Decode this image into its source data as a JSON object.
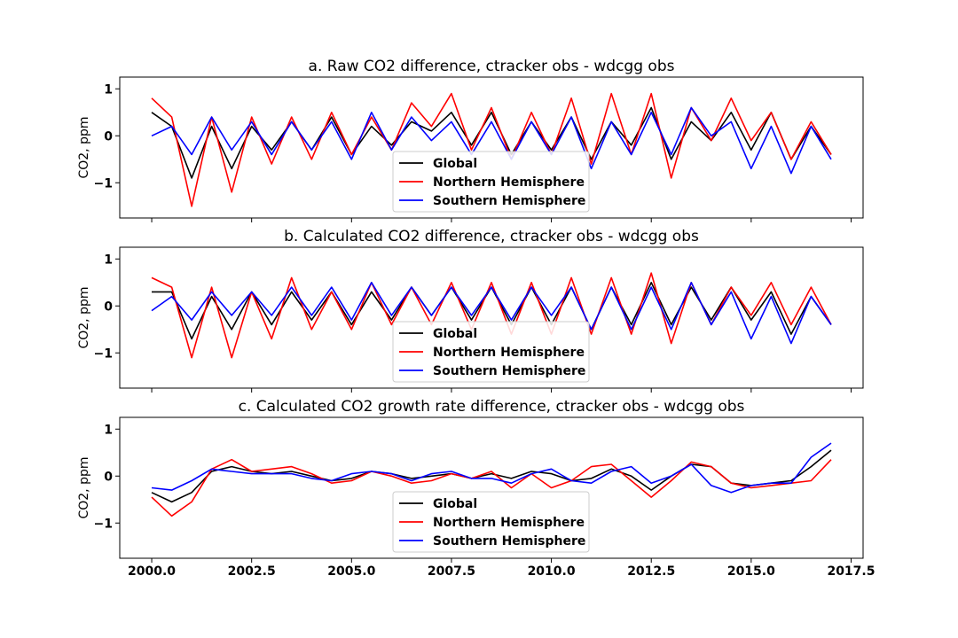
{
  "chart_data": [
    {
      "type": "line",
      "title": "a. Raw CO2 difference, ctracker obs - wdcgg obs",
      "ylabel": "CO2, ppm",
      "xlabel": "",
      "xlim": [
        1999.2,
        2017.8
      ],
      "ylim": [
        -1.75,
        1.25
      ],
      "yticks": [
        1,
        0,
        -1
      ],
      "ytick_labels": [
        "1",
        "0",
        "−1"
      ],
      "xticks": [
        2000.0,
        2002.5,
        2005.0,
        2007.5,
        2010.0,
        2012.5,
        2015.0,
        2017.5
      ],
      "xtick_labels": [],
      "grid": false,
      "legend_position": "lower-center",
      "series": [
        {
          "name": "Global",
          "color": "#000000",
          "x": [
            2000.0,
            2000.5,
            2001.0,
            2001.5,
            2002.0,
            2002.5,
            2003.0,
            2003.5,
            2004.0,
            2004.5,
            2005.0,
            2005.5,
            2006.0,
            2006.5,
            2007.0,
            2007.5,
            2008.0,
            2008.5,
            2009.0,
            2009.5,
            2010.0,
            2010.5,
            2011.0,
            2011.5,
            2012.0,
            2012.5,
            2013.0,
            2013.5,
            2014.0,
            2014.5,
            2015.0,
            2015.5,
            2016.0,
            2016.5,
            2017.0
          ],
          "y": [
            0.5,
            0.2,
            -0.9,
            0.2,
            -0.7,
            0.2,
            -0.3,
            0.3,
            -0.3,
            0.4,
            -0.4,
            0.2,
            -0.2,
            0.3,
            0.1,
            0.5,
            -0.2,
            0.5,
            -0.4,
            0.3,
            -0.3,
            0.4,
            -0.5,
            0.3,
            -0.2,
            0.6,
            -0.5,
            0.3,
            -0.1,
            0.5,
            -0.3,
            0.5,
            -0.5,
            0.2,
            -0.4
          ]
        },
        {
          "name": "Northern Hemisphere",
          "color": "#ff0000",
          "x": [
            2000.0,
            2000.5,
            2001.0,
            2001.5,
            2002.0,
            2002.5,
            2003.0,
            2003.5,
            2004.0,
            2004.5,
            2005.0,
            2005.5,
            2006.0,
            2006.5,
            2007.0,
            2007.5,
            2008.0,
            2008.5,
            2009.0,
            2009.5,
            2010.0,
            2010.5,
            2011.0,
            2011.5,
            2012.0,
            2012.5,
            2013.0,
            2013.5,
            2014.0,
            2014.5,
            2015.0,
            2015.5,
            2016.0,
            2016.5,
            2017.0
          ],
          "y": [
            0.8,
            0.4,
            -1.5,
            0.4,
            -1.2,
            0.4,
            -0.6,
            0.4,
            -0.5,
            0.5,
            -0.4,
            0.4,
            -0.3,
            0.7,
            0.2,
            0.9,
            -0.3,
            0.6,
            -0.5,
            0.5,
            -0.4,
            0.8,
            -0.6,
            0.9,
            -0.4,
            0.9,
            -0.9,
            0.6,
            -0.1,
            0.8,
            -0.1,
            0.5,
            -0.5,
            0.3,
            -0.4
          ]
        },
        {
          "name": "Southern Hemisphere",
          "color": "#0000ff",
          "x": [
            2000.0,
            2000.5,
            2001.0,
            2001.5,
            2002.0,
            2002.5,
            2003.0,
            2003.5,
            2004.0,
            2004.5,
            2005.0,
            2005.5,
            2006.0,
            2006.5,
            2007.0,
            2007.5,
            2008.0,
            2008.5,
            2009.0,
            2009.5,
            2010.0,
            2010.5,
            2011.0,
            2011.5,
            2012.0,
            2012.5,
            2013.0,
            2013.5,
            2014.0,
            2014.5,
            2015.0,
            2015.5,
            2016.0,
            2016.5,
            2017.0
          ],
          "y": [
            0.0,
            0.2,
            -0.4,
            0.4,
            -0.3,
            0.3,
            -0.4,
            0.3,
            -0.3,
            0.3,
            -0.5,
            0.5,
            -0.3,
            0.4,
            -0.1,
            0.3,
            -0.4,
            0.3,
            -0.5,
            0.3,
            -0.4,
            0.4,
            -0.7,
            0.3,
            -0.4,
            0.5,
            -0.4,
            0.6,
            0.0,
            0.3,
            -0.7,
            0.2,
            -0.8,
            0.2,
            -0.5
          ]
        }
      ]
    },
    {
      "type": "line",
      "title": "b. Calculated CO2 difference, ctracker obs - wdcgg obs",
      "ylabel": "CO2, ppm",
      "xlabel": "",
      "xlim": [
        1999.2,
        2017.8
      ],
      "ylim": [
        -1.75,
        1.25
      ],
      "yticks": [
        1,
        0,
        -1
      ],
      "ytick_labels": [
        "1",
        "0",
        "−1"
      ],
      "xticks": [
        2000.0,
        2002.5,
        2005.0,
        2007.5,
        2010.0,
        2012.5,
        2015.0,
        2017.5
      ],
      "xtick_labels": [],
      "grid": false,
      "legend_position": "lower-center",
      "series": [
        {
          "name": "Global",
          "color": "#000000",
          "x": [
            2000.0,
            2000.5,
            2001.0,
            2001.5,
            2002.0,
            2002.5,
            2003.0,
            2003.5,
            2004.0,
            2004.5,
            2005.0,
            2005.5,
            2006.0,
            2006.5,
            2007.0,
            2007.5,
            2008.0,
            2008.5,
            2009.0,
            2009.5,
            2010.0,
            2010.5,
            2011.0,
            2011.5,
            2012.0,
            2012.5,
            2013.0,
            2013.5,
            2014.0,
            2014.5,
            2015.0,
            2015.5,
            2016.0,
            2016.5,
            2017.0
          ],
          "y": [
            0.3,
            0.3,
            -0.7,
            0.2,
            -0.5,
            0.3,
            -0.4,
            0.3,
            -0.3,
            0.3,
            -0.4,
            0.3,
            -0.3,
            0.4,
            -0.2,
            0.4,
            -0.3,
            0.4,
            -0.4,
            0.4,
            -0.4,
            0.4,
            -0.5,
            0.4,
            -0.4,
            0.5,
            -0.4,
            0.4,
            -0.3,
            0.4,
            -0.3,
            0.3,
            -0.6,
            0.2,
            -0.4
          ]
        },
        {
          "name": "Northern Hemisphere",
          "color": "#ff0000",
          "x": [
            2000.0,
            2000.5,
            2001.0,
            2001.5,
            2002.0,
            2002.5,
            2003.0,
            2003.5,
            2004.0,
            2004.5,
            2005.0,
            2005.5,
            2006.0,
            2006.5,
            2007.0,
            2007.5,
            2008.0,
            2008.5,
            2009.0,
            2009.5,
            2010.0,
            2010.5,
            2011.0,
            2011.5,
            2012.0,
            2012.5,
            2013.0,
            2013.5,
            2014.0,
            2014.5,
            2015.0,
            2015.5,
            2016.0,
            2016.5,
            2017.0
          ],
          "y": [
            0.6,
            0.4,
            -1.1,
            0.4,
            -1.1,
            0.3,
            -0.7,
            0.6,
            -0.5,
            0.3,
            -0.5,
            0.5,
            -0.4,
            0.4,
            -0.4,
            0.5,
            -0.5,
            0.5,
            -0.6,
            0.5,
            -0.6,
            0.6,
            -0.6,
            0.6,
            -0.6,
            0.7,
            -0.8,
            0.5,
            -0.4,
            0.4,
            -0.2,
            0.5,
            -0.4,
            0.4,
            -0.4
          ]
        },
        {
          "name": "Southern Hemisphere",
          "color": "#0000ff",
          "x": [
            2000.0,
            2000.5,
            2001.0,
            2001.5,
            2002.0,
            2002.5,
            2003.0,
            2003.5,
            2004.0,
            2004.5,
            2005.0,
            2005.5,
            2006.0,
            2006.5,
            2007.0,
            2007.5,
            2008.0,
            2008.5,
            2009.0,
            2009.5,
            2010.0,
            2010.5,
            2011.0,
            2011.5,
            2012.0,
            2012.5,
            2013.0,
            2013.5,
            2014.0,
            2014.5,
            2015.0,
            2015.5,
            2016.0,
            2016.5,
            2017.0
          ],
          "y": [
            -0.1,
            0.2,
            -0.3,
            0.3,
            -0.2,
            0.3,
            -0.2,
            0.4,
            -0.2,
            0.4,
            -0.3,
            0.5,
            -0.2,
            0.4,
            -0.2,
            0.4,
            -0.2,
            0.4,
            -0.3,
            0.4,
            -0.2,
            0.4,
            -0.5,
            0.4,
            -0.5,
            0.4,
            -0.5,
            0.5,
            -0.4,
            0.3,
            -0.7,
            0.2,
            -0.8,
            0.2,
            -0.4
          ]
        }
      ]
    },
    {
      "type": "line",
      "title": "c. Calculated CO2 growth rate difference, ctracker obs - wdcgg obs",
      "ylabel": "CO2, ppm",
      "xlabel": "",
      "xlim": [
        1999.2,
        2017.8
      ],
      "ylim": [
        -1.75,
        1.25
      ],
      "yticks": [
        1,
        0,
        -1
      ],
      "ytick_labels": [
        "1",
        "0",
        "−1"
      ],
      "xticks": [
        2000.0,
        2002.5,
        2005.0,
        2007.5,
        2010.0,
        2012.5,
        2015.0,
        2017.5
      ],
      "xtick_labels": [
        "2000.0",
        "2002.5",
        "2005.0",
        "2007.5",
        "2010.0",
        "2012.5",
        "2015.0",
        "2017.5"
      ],
      "grid": false,
      "legend_position": "lower-center",
      "series": [
        {
          "name": "Global",
          "color": "#000000",
          "x": [
            2000.0,
            2000.5,
            2001.0,
            2001.5,
            2002.0,
            2002.5,
            2003.0,
            2003.5,
            2004.0,
            2004.5,
            2005.0,
            2005.5,
            2006.0,
            2006.5,
            2007.0,
            2007.5,
            2008.0,
            2008.5,
            2009.0,
            2009.5,
            2010.0,
            2010.5,
            2011.0,
            2011.5,
            2012.0,
            2012.5,
            2013.0,
            2013.5,
            2014.0,
            2014.5,
            2015.0,
            2015.5,
            2016.0,
            2016.5,
            2017.0
          ],
          "y": [
            -0.35,
            -0.55,
            -0.35,
            0.1,
            0.2,
            0.1,
            0.05,
            0.1,
            0.0,
            -0.1,
            -0.05,
            0.1,
            0.05,
            -0.05,
            0.0,
            0.05,
            -0.05,
            0.05,
            -0.05,
            0.1,
            0.05,
            -0.1,
            -0.05,
            0.15,
            0.0,
            -0.3,
            0.0,
            0.25,
            0.2,
            -0.15,
            -0.2,
            -0.15,
            -0.1,
            0.2,
            0.55
          ]
        },
        {
          "name": "Northern Hemisphere",
          "color": "#ff0000",
          "x": [
            2000.0,
            2000.5,
            2001.0,
            2001.5,
            2002.0,
            2002.5,
            2003.0,
            2003.5,
            2004.0,
            2004.5,
            2005.0,
            2005.5,
            2006.0,
            2006.5,
            2007.0,
            2007.5,
            2008.0,
            2008.5,
            2009.0,
            2009.5,
            2010.0,
            2010.5,
            2011.0,
            2011.5,
            2012.0,
            2012.5,
            2013.0,
            2013.5,
            2014.0,
            2014.5,
            2015.0,
            2015.5,
            2016.0,
            2016.5,
            2017.0
          ],
          "y": [
            -0.45,
            -0.85,
            -0.55,
            0.15,
            0.35,
            0.1,
            0.15,
            0.2,
            0.05,
            -0.15,
            -0.1,
            0.1,
            0.0,
            -0.15,
            -0.1,
            0.05,
            -0.05,
            0.1,
            -0.25,
            0.05,
            -0.25,
            -0.1,
            0.2,
            0.25,
            -0.1,
            -0.45,
            -0.1,
            0.3,
            0.2,
            -0.15,
            -0.25,
            -0.2,
            -0.15,
            -0.1,
            0.35
          ]
        },
        {
          "name": "Southern Hemisphere",
          "color": "#0000ff",
          "x": [
            2000.0,
            2000.5,
            2001.0,
            2001.5,
            2002.0,
            2002.5,
            2003.0,
            2003.5,
            2004.0,
            2004.5,
            2005.0,
            2005.5,
            2006.0,
            2006.5,
            2007.0,
            2007.5,
            2008.0,
            2008.5,
            2009.0,
            2009.5,
            2010.0,
            2010.5,
            2011.0,
            2011.5,
            2012.0,
            2012.5,
            2013.0,
            2013.5,
            2014.0,
            2014.5,
            2015.0,
            2015.5,
            2016.0,
            2016.5,
            2017.0
          ],
          "y": [
            -0.25,
            -0.3,
            -0.1,
            0.15,
            0.1,
            0.05,
            0.05,
            0.05,
            -0.05,
            -0.1,
            0.05,
            0.1,
            0.05,
            -0.1,
            0.05,
            0.1,
            -0.05,
            -0.05,
            -0.15,
            0.05,
            0.15,
            -0.1,
            -0.15,
            0.1,
            0.2,
            -0.15,
            0.0,
            0.25,
            -0.2,
            -0.35,
            -0.2,
            -0.15,
            -0.15,
            0.4,
            0.7
          ]
        }
      ]
    }
  ]
}
